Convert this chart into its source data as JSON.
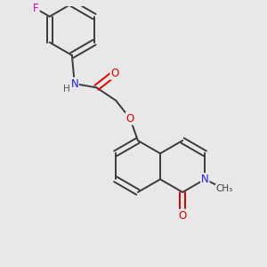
{
  "background_color": "#e8e8e8",
  "bond_color": "#3a3a3a",
  "bond_width": 1.4,
  "figsize": [
    3.0,
    3.0
  ],
  "dpi": 100,
  "atom_colors": {
    "N": "#1a1aff",
    "O": "#dd0000",
    "F": "#cc00cc",
    "C": "#3a3a3a",
    "H": "#555555"
  },
  "font_size": 8.5,
  "bg": "#e8e8e8"
}
